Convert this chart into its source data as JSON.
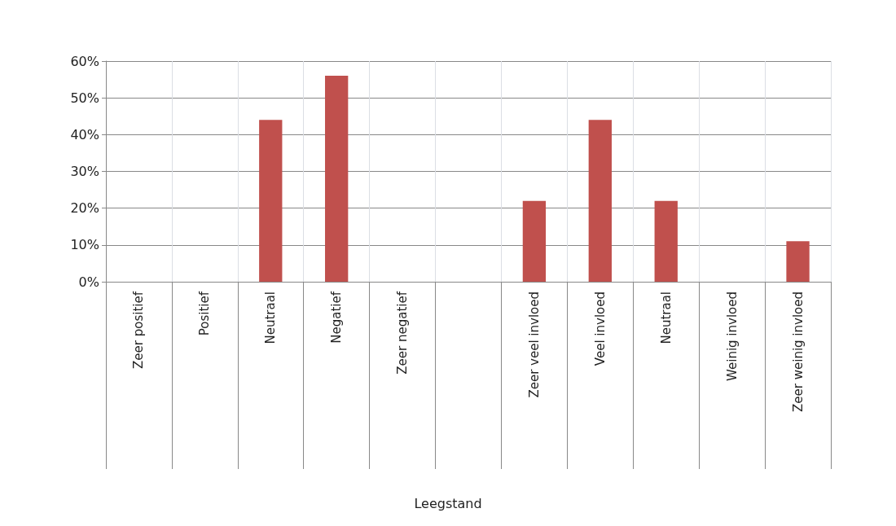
{
  "chart_data": {
    "type": "bar",
    "annotations": [
      "Leegstand"
    ],
    "categories": [
      "Zeer positief",
      "Positief",
      "Neutraal",
      "Negatief",
      "Zeer negatief",
      null,
      "Zeer veel invloed",
      "Veel invloed",
      "Neutraal",
      "Weinig invloed",
      "Zeer weinig invloed"
    ],
    "series": [
      {
        "color": "#c0504d",
        "values": [
          0,
          0,
          44,
          56,
          0,
          null,
          22,
          44,
          22,
          0,
          11
        ]
      }
    ],
    "ylim": [
      0,
      60
    ],
    "yticks": [
      {
        "value": 0,
        "label": "0%"
      },
      {
        "value": 10,
        "label": "10%"
      },
      {
        "value": 20,
        "label": "20%"
      },
      {
        "value": 30,
        "label": "30%"
      },
      {
        "value": 40,
        "label": "40%"
      },
      {
        "value": 50,
        "label": "50%"
      },
      {
        "value": 60,
        "label": "60%"
      }
    ],
    "grid": true
  }
}
